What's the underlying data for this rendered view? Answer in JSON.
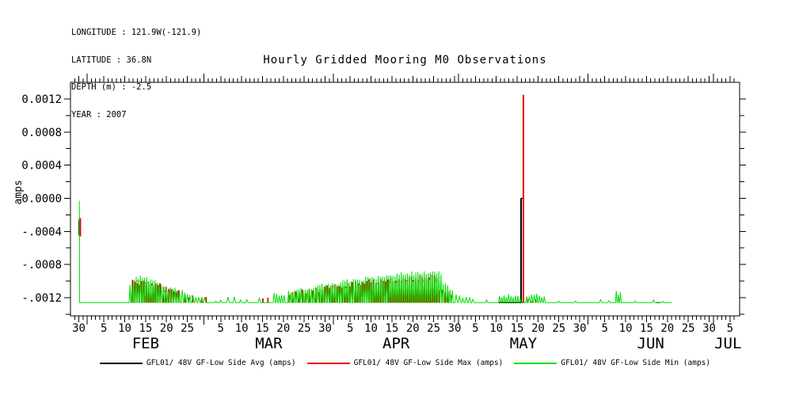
{
  "header_info": {
    "longitude": "LONGITUDE : 121.9W(-121.9)",
    "latitude": "LATITUDE : 36.8N",
    "depth": "DEPTH (m) : -2.5",
    "year": "YEAR : 2007"
  },
  "chart_data": {
    "type": "line",
    "title": "Hourly Gridded Mooring M0 Observations",
    "xlabel": "",
    "ylabel": "amps",
    "grid": false,
    "legend_position": "bottom",
    "seed": 20070516,
    "colors": {
      "avg": "#000000",
      "max": "#e60000",
      "min": "#00de00",
      "frame": "#000000"
    },
    "legend": [
      {
        "label": "GFL01/ 48V GF-Low Side Avg (amps)",
        "color": "#000000"
      },
      {
        "label": "GFL01/ 48V GF-Low Side Max (amps)",
        "color": "#e60000"
      },
      {
        "label": "GFL01/ 48V GF-Low Side Min (amps)",
        "color": "#00de00"
      }
    ],
    "x_axis": {
      "unit": "day offset from Jan 30, 2007",
      "domain": {
        "min": -2,
        "max": 158.3
      },
      "minor_tick_step": 1,
      "labeled_ticks": [
        {
          "day": 0,
          "label": "30"
        },
        {
          "day": 6,
          "label": "5"
        },
        {
          "day": 11,
          "label": "10"
        },
        {
          "day": 16,
          "label": "15"
        },
        {
          "day": 21,
          "label": "20"
        },
        {
          "day": 26,
          "label": "25"
        },
        {
          "day": 34,
          "label": "5"
        },
        {
          "day": 39,
          "label": "10"
        },
        {
          "day": 44,
          "label": "15"
        },
        {
          "day": 49,
          "label": "20"
        },
        {
          "day": 54,
          "label": "25"
        },
        {
          "day": 59,
          "label": "30"
        },
        {
          "day": 65,
          "label": "5"
        },
        {
          "day": 70,
          "label": "10"
        },
        {
          "day": 75,
          "label": "15"
        },
        {
          "day": 80,
          "label": "20"
        },
        {
          "day": 85,
          "label": "25"
        },
        {
          "day": 90,
          "label": "30"
        },
        {
          "day": 95,
          "label": "5"
        },
        {
          "day": 100,
          "label": "10"
        },
        {
          "day": 105,
          "label": "15"
        },
        {
          "day": 110,
          "label": "20"
        },
        {
          "day": 115,
          "label": "25"
        },
        {
          "day": 120,
          "label": "30"
        },
        {
          "day": 126,
          "label": "5"
        },
        {
          "day": 131,
          "label": "10"
        },
        {
          "day": 136,
          "label": "15"
        },
        {
          "day": 141,
          "label": "20"
        },
        {
          "day": 146,
          "label": "25"
        },
        {
          "day": 151,
          "label": "30"
        },
        {
          "day": 156,
          "label": "5"
        }
      ],
      "month_boundaries": [
        2,
        30,
        61,
        91,
        122,
        152
      ],
      "month_labels": [
        {
          "label": "FEB",
          "day": 16
        },
        {
          "label": "MAR",
          "day": 45.5
        },
        {
          "label": "APR",
          "day": 76
        },
        {
          "label": "MAY",
          "day": 106.5
        },
        {
          "label": "JUN",
          "day": 137
        },
        {
          "label": "JUL",
          "day": 155.5
        }
      ]
    },
    "y_axis": {
      "domain": {
        "min": -0.00142,
        "max": 0.0014
      },
      "minor_tick_step": 0.0002,
      "labeled_ticks": [
        {
          "value": 0.0012,
          "label": "0.0012"
        },
        {
          "value": 0.0008,
          "label": "0.0008"
        },
        {
          "value": 0.0004,
          "label": "0.0004"
        },
        {
          "value": 0.0,
          "label": "0.0000"
        },
        {
          "value": -0.0004,
          "label": "-.0004"
        },
        {
          "value": -0.0008,
          "label": "-.0008"
        },
        {
          "value": -0.0012,
          "label": "-.0012"
        }
      ]
    },
    "series": [
      {
        "name": "GFL01/ 48V GF-Low Side Avg (amps)",
        "stat": "avg",
        "color": "#000000",
        "elements": [
          {
            "type": "vbar",
            "day": 0.18,
            "v0": -0.00044,
            "v1": -0.00027,
            "w": 3
          },
          {
            "type": "dashes",
            "d0": 13.8,
            "d1": 19.5,
            "v0": -0.00101,
            "v1": -0.00106,
            "count": 7
          },
          {
            "type": "dashes",
            "d0": 20.2,
            "d1": 24.0,
            "v0": -0.00111,
            "v1": -0.00114,
            "count": 4
          },
          {
            "type": "dashes",
            "d0": 60.0,
            "d1": 74.0,
            "v0": -0.00108,
            "v1": -0.00102,
            "count": 9
          },
          {
            "type": "dashes",
            "d0": 74.0,
            "d1": 86.0,
            "v0": -0.00102,
            "v1": -0.00098,
            "count": 9
          },
          {
            "type": "hline",
            "d0": 100.6,
            "d1": 106.4,
            "v": -0.00126
          },
          {
            "type": "vbar",
            "day": 105.95,
            "v0": -0.00126,
            "v1": 0.0,
            "w": 2
          },
          {
            "type": "hline",
            "d0": 105.95,
            "d1": 106.5,
            "v": 0.0
          },
          {
            "type": "hline",
            "d0": 138.3,
            "d1": 139.2,
            "v": -0.00126
          }
        ]
      },
      {
        "name": "GFL01/ 48V GF-Low Side Max (amps)",
        "stat": "max",
        "color": "#e60000",
        "baseline": -0.00126,
        "elements": [
          {
            "type": "vbar",
            "day": 0.26,
            "v0": -0.00046,
            "v1": -0.00024,
            "w": 3
          },
          {
            "type": "bars",
            "d0": 12.6,
            "d1": 20.0,
            "v0": -0.001,
            "v1": -0.00106,
            "period": 0.55
          },
          {
            "type": "bars",
            "d0": 20.0,
            "d1": 24.5,
            "v0": -0.00109,
            "v1": -0.00113,
            "period": 0.6
          },
          {
            "type": "bars",
            "d0": 25.0,
            "d1": 28.0,
            "v0": -0.00116,
            "v1": -0.00119,
            "period": 0.9
          },
          {
            "type": "bars",
            "d0": 29.0,
            "d1": 31.0,
            "v0": -0.0012,
            "v1": -0.00121,
            "period": 1.0
          },
          {
            "type": "bars",
            "d0": 43.5,
            "d1": 46.0,
            "v0": -0.0012,
            "v1": -0.00119,
            "period": 1.2
          },
          {
            "type": "bars",
            "d0": 50.0,
            "d1": 58.0,
            "v0": -0.00115,
            "v1": -0.0011,
            "period": 0.8
          },
          {
            "type": "bars",
            "d0": 58.0,
            "d1": 66.0,
            "v0": -0.00109,
            "v1": -0.00103,
            "period": 0.6
          },
          {
            "type": "bars",
            "d0": 66.0,
            "d1": 74.0,
            "v0": -0.00103,
            "v1": -0.00098,
            "period": 0.55
          },
          {
            "type": "bars",
            "d0": 74.0,
            "d1": 86.0,
            "v0": -0.00099,
            "v1": -0.00094,
            "period": 0.5
          },
          {
            "type": "bars",
            "d0": 86.0,
            "d1": 89.5,
            "v0": -0.00108,
            "v1": -0.00116,
            "period": 0.7
          },
          {
            "type": "bars",
            "d0": 107.0,
            "d1": 110.0,
            "v0": -0.00121,
            "v1": -0.00122,
            "period": 1.0
          },
          {
            "type": "vbar",
            "day": 106.5,
            "v0": -0.00126,
            "v1": 0.00125,
            "w": 2
          }
        ]
      },
      {
        "name": "GFL01/ 48V GF-Low Side Min (amps)",
        "stat": "min",
        "color": "#00de00",
        "baseline": -0.00126,
        "path": [
          {
            "op": "start",
            "day": 0.14,
            "v": -3e-05
          },
          {
            "op": "lineto",
            "day": 0.2,
            "v": -0.00126
          },
          {
            "op": "flat",
            "to": 12.0
          },
          {
            "op": "teeth",
            "to": 13.5,
            "v0": -0.00105,
            "v1": -0.00097,
            "period": 0.5
          },
          {
            "op": "teeth",
            "to": 16.5,
            "v0": -0.00095,
            "v1": -0.00097,
            "period": 0.5
          },
          {
            "op": "teeth",
            "to": 20.0,
            "v0": -0.00099,
            "v1": -0.00104,
            "period": 0.5
          },
          {
            "op": "teeth",
            "to": 24.5,
            "v0": -0.00107,
            "v1": -0.00112,
            "period": 0.55
          },
          {
            "op": "teeth",
            "to": 27.0,
            "v0": -0.00112,
            "v1": -0.00115,
            "period": 0.6
          },
          {
            "op": "teeth",
            "to": 31.0,
            "v0": -0.00116,
            "v1": -0.0012,
            "period": 0.7
          },
          {
            "op": "teeth",
            "to": 35.0,
            "v0": -0.00122,
            "v1": -0.00122,
            "period": 1.2
          },
          {
            "op": "teeth",
            "to": 46.5,
            "v0": -0.00121,
            "v1": -0.00121,
            "period": 1.5
          },
          {
            "op": "teeth",
            "to": 50.0,
            "v0": -0.00116,
            "v1": -0.00114,
            "period": 0.6
          },
          {
            "op": "teeth",
            "to": 56.0,
            "v0": -0.00113,
            "v1": -0.00108,
            "period": 0.5
          },
          {
            "op": "teeth",
            "to": 63.0,
            "v0": -0.00107,
            "v1": -0.00101,
            "period": 0.5
          },
          {
            "op": "teeth",
            "to": 70.0,
            "v0": -0.00101,
            "v1": -0.00096,
            "period": 0.5
          },
          {
            "op": "teeth",
            "to": 78.0,
            "v0": -0.00096,
            "v1": -0.00091,
            "period": 0.5
          },
          {
            "op": "teeth",
            "to": 82.0,
            "v0": -0.00092,
            "v1": -0.00089,
            "period": 0.5
          },
          {
            "op": "teeth",
            "to": 87.0,
            "v0": -0.00089,
            "v1": -0.0009,
            "period": 0.5
          },
          {
            "op": "teeth",
            "to": 90.0,
            "v0": -0.00102,
            "v1": -0.00112,
            "period": 0.55
          },
          {
            "op": "teeth",
            "to": 95.0,
            "v0": -0.00117,
            "v1": -0.00121,
            "period": 0.8
          },
          {
            "op": "teeth",
            "to": 100.5,
            "v0": -0.00123,
            "v1": -0.00123,
            "period": 1.8
          },
          {
            "op": "teeth",
            "to": 106.1,
            "v0": -0.00117,
            "v1": -0.00119,
            "period": 0.55
          },
          {
            "op": "flat",
            "to": 107.0
          },
          {
            "op": "teeth",
            "to": 112.0,
            "v0": -0.00116,
            "v1": -0.00119,
            "period": 0.6
          },
          {
            "op": "teeth",
            "to": 128.5,
            "v0": -0.00123,
            "v1": -0.00123,
            "period": 2.0
          },
          {
            "op": "teeth",
            "to": 130.0,
            "v0": -0.00112,
            "v1": -0.00117,
            "period": 0.5
          },
          {
            "op": "teeth",
            "to": 142.0,
            "v0": -0.00123,
            "v1": -0.00123,
            "period": 2.2
          }
        ]
      }
    ]
  }
}
